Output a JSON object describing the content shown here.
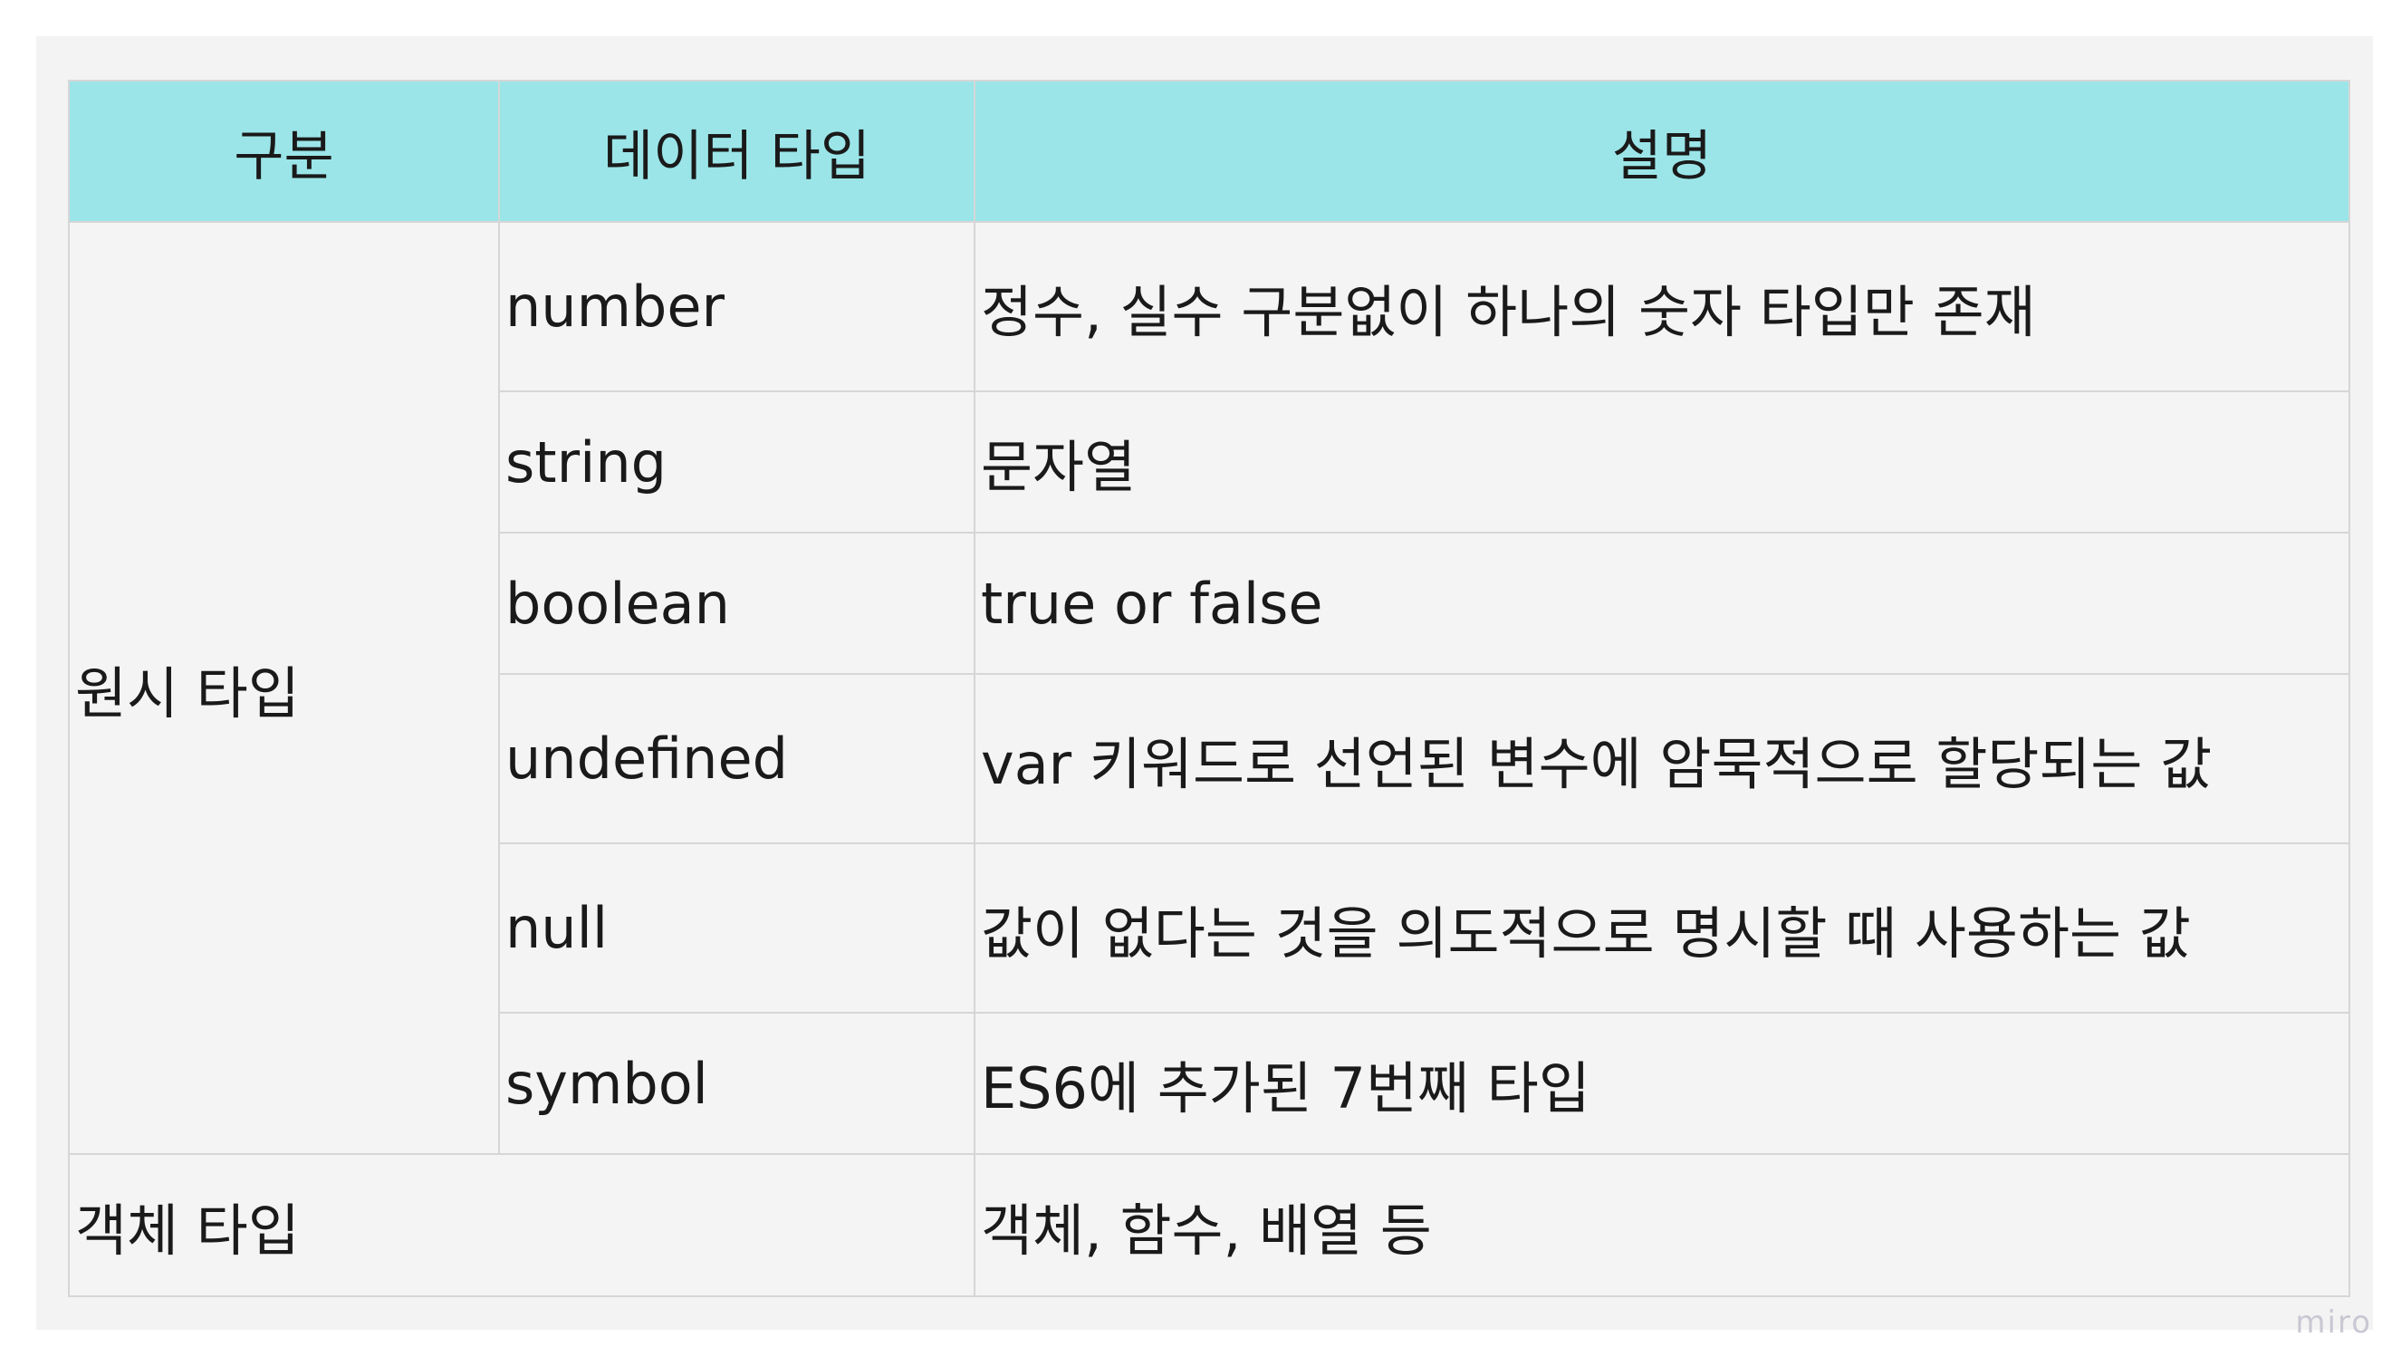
{
  "table": {
    "headers": [
      "구분",
      "데이터 타입",
      "설명"
    ],
    "primitive_group": "원시 타입",
    "primitive_rows": [
      {
        "type": "number",
        "description": "정수, 실수 구분없이 하나의 숫자 타입만 존재"
      },
      {
        "type": "string",
        "description": "문자열"
      },
      {
        "type": "boolean",
        "description": "true or false"
      },
      {
        "type": "undefined",
        "description": "var 키워드로 선언된 변수에 암묵적으로 할당되는 값"
      },
      {
        "type": "null",
        "description": "값이 없다는 것을 의도적으로 명시할 때 사용하는 값"
      },
      {
        "type": "symbol",
        "description": "ES6에 추가된 7번째 타입"
      }
    ],
    "object_row": {
      "group": "객체 타입",
      "description": "객체, 함수, 배열 등"
    }
  },
  "watermark": "miro",
  "colors": {
    "header_bg": "#9be5e8",
    "cell_bg": "#f4f4f4",
    "border": "#d6d6d6"
  }
}
